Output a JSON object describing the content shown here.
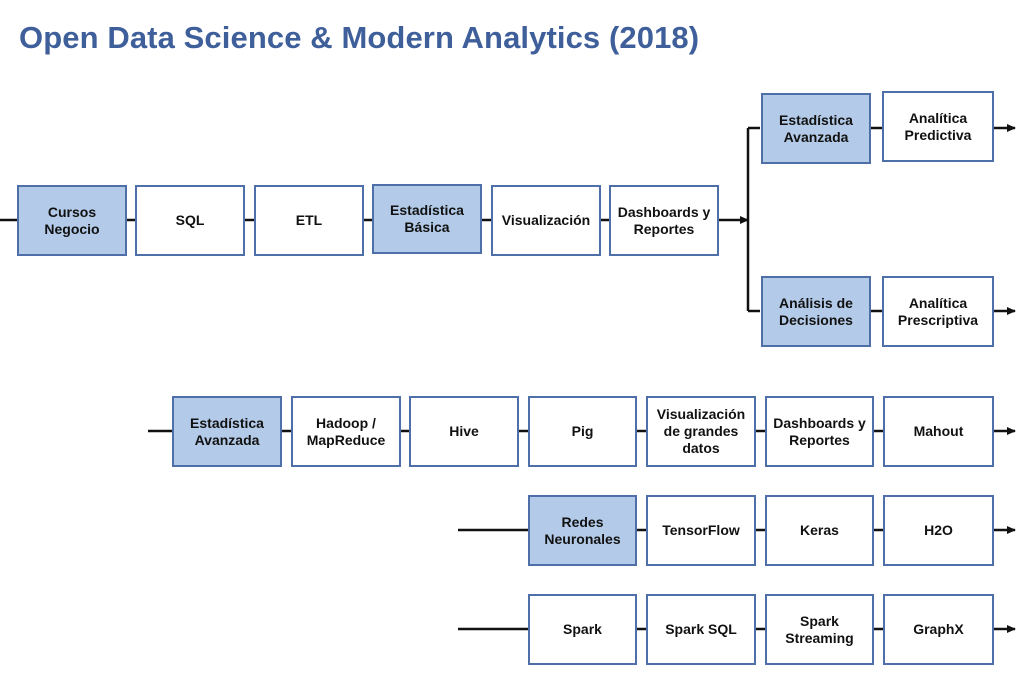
{
  "title": "Open Data Science & Modern Analytics (2018)",
  "colors": {
    "title": "#3f5f9b",
    "node_border": "#4f6fa8",
    "highlight_fill": "#b3cbe9",
    "line": "#111111"
  },
  "nodes": {
    "cursos_negocio": "Cursos\nNegocio",
    "sql": "SQL",
    "etl": "ETL",
    "estadistica_basica": "Estadística\nBásica",
    "visualizacion": "Visualización",
    "dashboards_reportes_1": "Dashboards y\nReportes",
    "estadistica_avanzada_1": "Estadística\nAvanzada",
    "analitica_predictiva": "Analítica\nPredictiva",
    "analisis_decisiones": "Análisis de\nDecisiones",
    "analitica_prescriptiva": "Analítica\nPrescriptiva",
    "estadistica_avanzada_2": "Estadística\nAvanzada",
    "hadoop_mapreduce": "Hadoop /\nMapReduce",
    "hive": "Hive",
    "pig": "Pig",
    "visualizacion_grandes_datos": "Visualización\nde grandes\ndatos",
    "dashboards_reportes_2": "Dashboards y\nReportes",
    "mahout": "Mahout",
    "redes_neuronales": "Redes\nNeuronales",
    "tensorflow": "TensorFlow",
    "keras": "Keras",
    "h2o": "H2O",
    "spark": "Spark",
    "spark_sql": "Spark SQL",
    "spark_streaming": "Spark\nStreaming",
    "graphx": "GraphX"
  }
}
